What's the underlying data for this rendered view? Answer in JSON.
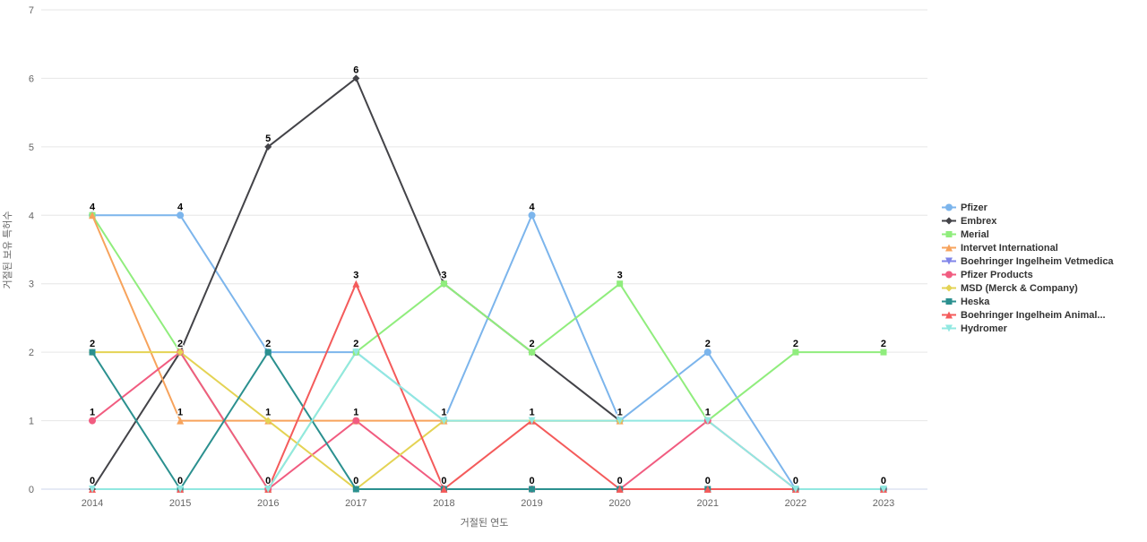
{
  "chart_data": {
    "type": "line",
    "x": [
      2014,
      2015,
      2016,
      2017,
      2018,
      2019,
      2020,
      2021,
      2022,
      2023
    ],
    "series": [
      {
        "name": "Pfizer",
        "color": "#7cb5ec",
        "symbol": "circle",
        "values": [
          4,
          4,
          2,
          2,
          1,
          4,
          1,
          2,
          0,
          0
        ]
      },
      {
        "name": "Embrex",
        "color": "#434348",
        "symbol": "diamond",
        "values": [
          0,
          2,
          5,
          6,
          3,
          2,
          1,
          null,
          null,
          null
        ]
      },
      {
        "name": "Merial",
        "color": "#90ed7d",
        "symbol": "square",
        "values": [
          4,
          2,
          0,
          2,
          3,
          2,
          3,
          1,
          2,
          2
        ]
      },
      {
        "name": "Intervet International",
        "color": "#f7a35c",
        "symbol": "triangle",
        "values": [
          4,
          1,
          1,
          1,
          1,
          1,
          1,
          null,
          null,
          null
        ]
      },
      {
        "name": "Boehringer Ingelheim Vetmedica",
        "color": "#8085e9",
        "symbol": "triangle-down",
        "values": [
          null,
          null,
          null,
          null,
          null,
          null,
          null,
          null,
          null,
          null
        ]
      },
      {
        "name": "Pfizer Products",
        "color": "#f15c80",
        "symbol": "circle",
        "values": [
          1,
          2,
          0,
          1,
          0,
          0,
          0,
          1,
          0,
          0
        ]
      },
      {
        "name": "MSD (Merck & Company)",
        "color": "#e4d354",
        "symbol": "diamond",
        "values": [
          2,
          2,
          1,
          0,
          1,
          1,
          1,
          null,
          null,
          null
        ]
      },
      {
        "name": "Heska",
        "color": "#2b908f",
        "symbol": "square",
        "values": [
          2,
          0,
          2,
          0,
          0,
          0,
          0,
          0,
          0,
          0
        ]
      },
      {
        "name": "Boehringer Ingelheim Animal...",
        "color": "#f45b5b",
        "symbol": "triangle",
        "values": [
          0,
          0,
          0,
          3,
          0,
          1,
          0,
          0,
          0,
          0
        ]
      },
      {
        "name": "Hydromer",
        "color": "#91e8e1",
        "symbol": "triangle-down",
        "values": [
          0,
          0,
          0,
          2,
          1,
          1,
          1,
          1,
          0,
          0
        ]
      }
    ],
    "xlabel": "거절된 연도",
    "ylabel": "거절된 보유 특허수",
    "ylim": [
      0,
      7
    ],
    "yticks": [
      0,
      1,
      2,
      3,
      4,
      5,
      6,
      7
    ],
    "grid": "horizontal",
    "legend_position": "right",
    "colors": {
      "gridline": "#e6e6e6",
      "axis_line": "#ccd6eb",
      "tick_label": "#666666",
      "data_label": "#000000",
      "legend_text": "#333333"
    }
  }
}
